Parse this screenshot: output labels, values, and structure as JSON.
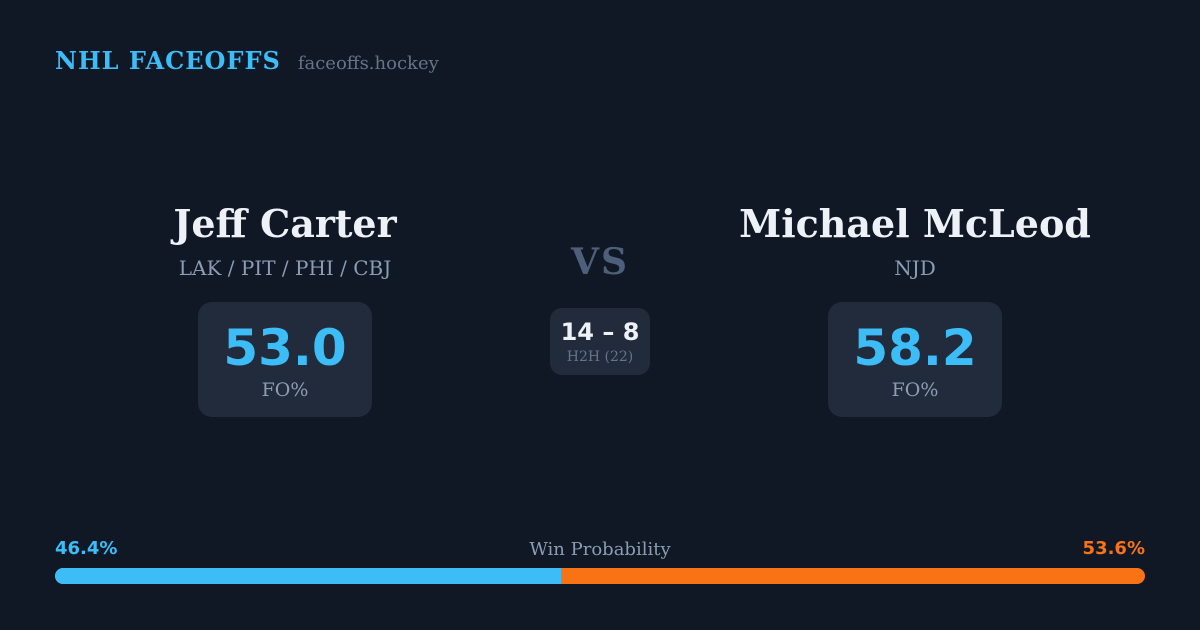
{
  "header": {
    "brand": "NHL FACEOFFS",
    "site": "faceoffs.hockey"
  },
  "players": {
    "left": {
      "name": "Jeff Carter",
      "teams": "LAK / PIT / PHI / CBJ",
      "fo_pct": "53.0",
      "stat_label": "FO%"
    },
    "right": {
      "name": "Michael McLeod",
      "teams": "NJD",
      "fo_pct": "58.2",
      "stat_label": "FO%"
    }
  },
  "versus": {
    "label": "VS",
    "h2h_record": "14 – 8",
    "h2h_label": "H2H (22)"
  },
  "win_probability": {
    "title": "Win Probability",
    "left_label": "46.4%",
    "right_label": "53.6%",
    "left_value": 46.4,
    "right_value": 53.6
  },
  "colors": {
    "background": "#101826",
    "card": "#212b3b",
    "accent_blue": "#3cbdf8",
    "accent_orange": "#f97316",
    "text_primary": "#eef2f7",
    "text_muted": "#8c9cb4",
    "text_faint": "#64748b",
    "vs": "#4e5f7a"
  }
}
